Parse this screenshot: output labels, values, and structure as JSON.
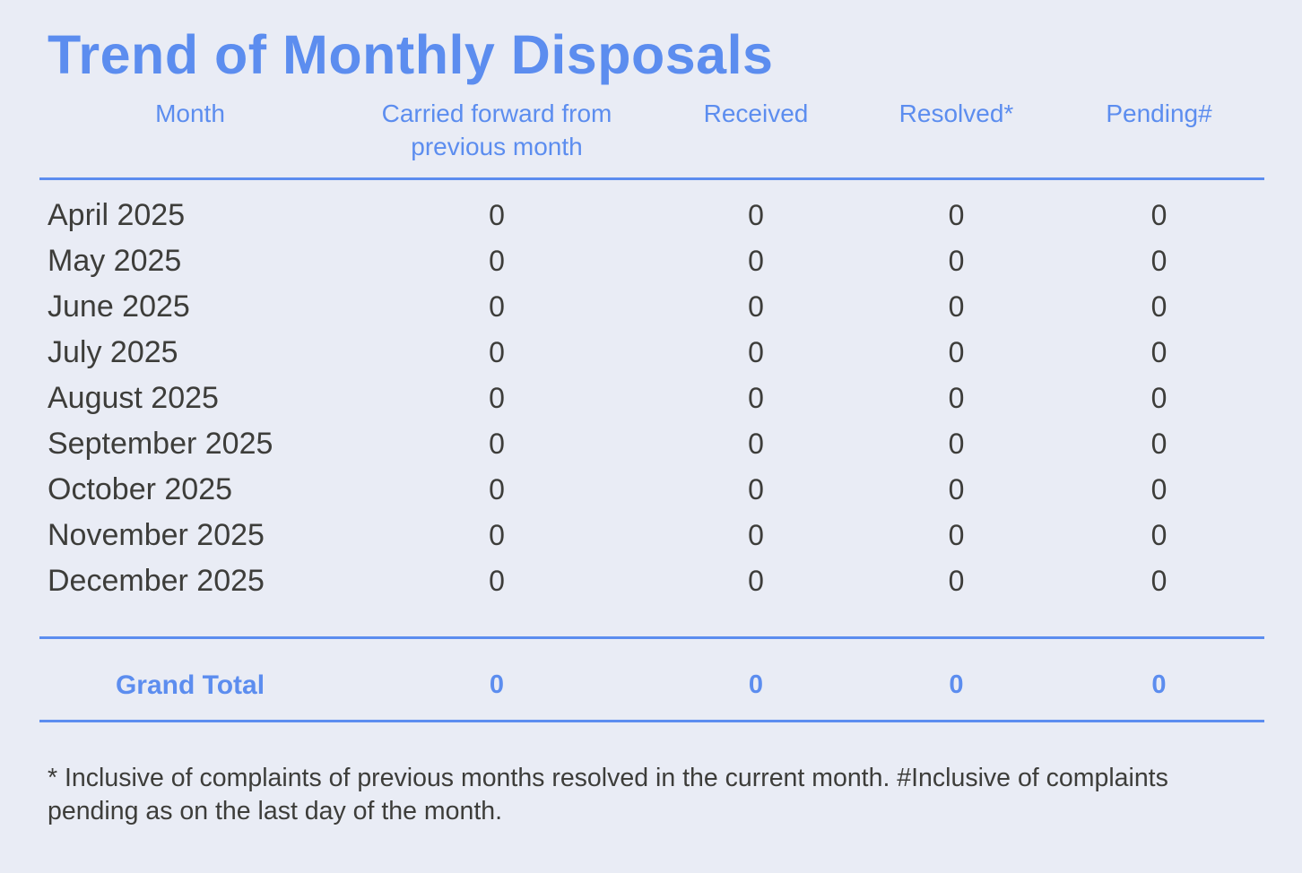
{
  "colors": {
    "accent": "#5c8def",
    "text": "#3d3d3a",
    "background": "#e9ecf5"
  },
  "title": "Trend of Monthly Disposals",
  "table": {
    "columns": [
      "Month",
      "Carried forward from previous month",
      "Received",
      "Resolved*",
      "Pending#"
    ],
    "rows": [
      {
        "month": "April 2025",
        "values": [
          "0",
          "0",
          "0",
          "0"
        ]
      },
      {
        "month": "May 2025",
        "values": [
          "0",
          "0",
          "0",
          "0"
        ]
      },
      {
        "month": "June 2025",
        "values": [
          "0",
          "0",
          "0",
          "0"
        ]
      },
      {
        "month": "July 2025",
        "values": [
          "0",
          "0",
          "0",
          "0"
        ]
      },
      {
        "month": "August 2025",
        "values": [
          "0",
          "0",
          "0",
          "0"
        ]
      },
      {
        "month": "September 2025",
        "values": [
          "0",
          "0",
          "0",
          "0"
        ]
      },
      {
        "month": "October 2025",
        "values": [
          "0",
          "0",
          "0",
          "0"
        ]
      },
      {
        "month": "November 2025",
        "values": [
          "0",
          "0",
          "0",
          "0"
        ]
      },
      {
        "month": "December 2025",
        "values": [
          "0",
          "0",
          "0",
          "0"
        ]
      }
    ],
    "grand_total": {
      "label": "Grand Total",
      "values": [
        "0",
        "0",
        "0",
        "0"
      ]
    }
  },
  "footnote": "* Inclusive of complaints of previous months resolved in the current month. #Inclusive of complaints pending as on the last day of the month."
}
